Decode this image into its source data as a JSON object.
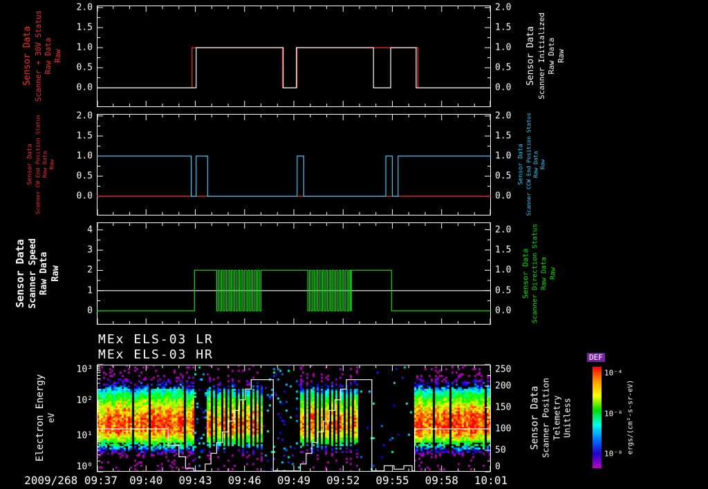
{
  "figure": {
    "bg": "#000000",
    "fg": "#ffffff",
    "x_axis": {
      "start_label": "2009/268 09:37",
      "range_minutes": [
        0,
        24
      ],
      "tick_minutes": [
        0,
        3,
        6,
        9,
        12,
        15,
        18,
        21,
        24
      ],
      "tick_labels": [
        "",
        "09:40",
        "09:43",
        "09:46",
        "09:49",
        "09:52",
        "09:55",
        "09:58",
        "10:01"
      ]
    }
  },
  "chart_data": [
    {
      "type": "line",
      "panel": "scanner-30v-and-initialized",
      "xlim": [
        0,
        24
      ],
      "ylim": [
        -0.48,
        2.05
      ],
      "yticks": {
        "values": [
          0,
          0.5,
          1,
          1.5,
          2
        ],
        "labels": [
          "0.0",
          "0.5",
          "1.0",
          "1.5",
          "2.0"
        ]
      },
      "left_label_lines": [
        "Sensor Data",
        "Scanner + 30V Status",
        "Raw Data",
        "Raw"
      ],
      "left_label_color": "#ff2a2a",
      "right_label_lines": [
        "Sensor Data",
        "Scanner Initialized",
        "Raw Data",
        "Raw"
      ],
      "right_label_color": "#ffffff",
      "series": [
        {
          "name": "Scanner + 30V Status Raw",
          "color": "#ff2a2a",
          "points": [
            [
              0,
              0
            ],
            [
              5.8,
              0
            ],
            [
              5.8,
              1
            ],
            [
              11.3,
              1
            ],
            [
              11.3,
              0
            ],
            [
              12.2,
              0
            ],
            [
              12.2,
              1
            ],
            [
              19.55,
              1
            ],
            [
              19.55,
              0
            ],
            [
              24,
              0
            ]
          ]
        },
        {
          "name": "Scanner Initialized Raw",
          "color": "#ffffff",
          "points": [
            [
              0,
              0
            ],
            [
              6.05,
              0
            ],
            [
              6.05,
              1
            ],
            [
              11.35,
              1
            ],
            [
              11.35,
              0
            ],
            [
              12.15,
              0
            ],
            [
              12.15,
              1
            ],
            [
              16.85,
              1
            ],
            [
              16.85,
              0
            ],
            [
              17.9,
              0
            ],
            [
              17.9,
              1
            ],
            [
              19.45,
              1
            ],
            [
              19.45,
              0
            ],
            [
              24,
              0
            ]
          ]
        }
      ]
    },
    {
      "type": "line",
      "panel": "scanner-end-position-status",
      "xlim": [
        0,
        24
      ],
      "ylim": [
        -0.48,
        2.05
      ],
      "yticks": {
        "values": [
          0,
          0.5,
          1,
          1.5,
          2
        ],
        "labels": [
          "0.0",
          "0.5",
          "1.0",
          "1.5",
          "2.0"
        ]
      },
      "left_label_lines": [
        "Sensor Data",
        "Scanner CW End Position Status",
        "Raw Data",
        "Raw"
      ],
      "left_label_color": "#ff2a2a",
      "right_label_lines": [
        "Sensor Data",
        "Scanner CCW End Position Status",
        "Raw Data",
        "Raw"
      ],
      "right_label_color": "#35ccff",
      "series": [
        {
          "name": "Scanner CW End Position Status Raw",
          "color": "#ff2a2a",
          "points": [
            [
              0,
              0
            ],
            [
              24,
              0
            ]
          ]
        },
        {
          "name": "Scanner CCW End Position Status Raw",
          "color": "#35ccff",
          "points": [
            [
              0,
              1
            ],
            [
              5.75,
              1
            ],
            [
              5.75,
              0
            ],
            [
              6.05,
              0
            ],
            [
              6.05,
              1
            ],
            [
              6.75,
              1
            ],
            [
              6.75,
              0
            ],
            [
              12.2,
              0
            ],
            [
              12.2,
              1
            ],
            [
              12.6,
              1
            ],
            [
              12.6,
              0
            ],
            [
              17.6,
              0
            ],
            [
              17.6,
              1
            ],
            [
              18.0,
              1
            ],
            [
              18.0,
              0
            ],
            [
              18.35,
              0
            ],
            [
              18.35,
              1
            ],
            [
              24,
              1
            ]
          ]
        }
      ]
    },
    {
      "type": "line",
      "panel": "scanner-speed-and-direction",
      "xlim": [
        0,
        24
      ],
      "ylim": [
        -0.68,
        4.37
      ],
      "yticks": {
        "values": [
          0,
          1,
          2,
          3,
          4
        ],
        "labels": [
          "0",
          "1",
          "2",
          "3",
          "4"
        ]
      },
      "right_ylim": [
        -0.34,
        2.18
      ],
      "right_yticks": {
        "values": [
          0,
          0.5,
          1,
          1.5,
          2
        ],
        "labels": [
          "0.0",
          "0.5",
          "1.0",
          "1.5",
          "2.0"
        ]
      },
      "left_label_lines": [
        "Sensor Data",
        "Scanner Speed",
        "Raw Data",
        "Raw"
      ],
      "left_label_color": "#ffffff",
      "right_label_lines": [
        "Sensor Data",
        "Scanner Direction Status",
        "Raw Data",
        "Raw"
      ],
      "right_label_color": "#00e600",
      "series": [
        {
          "name": "Scanner Speed Raw",
          "color": "#ffffff",
          "axis": "left",
          "points": [
            [
              0,
              1
            ],
            [
              24,
              1
            ]
          ]
        },
        {
          "name": "Scanner Direction Status Raw",
          "color": "#00e600",
          "axis": "right",
          "segments": [
            {
              "t": [
                0,
                5.95
              ],
              "v": 0
            },
            {
              "t": [
                5.95,
                7.2
              ],
              "v": 1
            },
            {
              "t": [
                7.2,
                10.0
              ],
              "square": {
                "period": 0.2,
                "high": 1,
                "low": 0
              }
            },
            {
              "t": [
                10.0,
                12.75
              ],
              "v": 1
            },
            {
              "t": [
                12.75,
                15.5
              ],
              "square": {
                "period": 0.2,
                "high": 1,
                "low": 0
              }
            },
            {
              "t": [
                15.5,
                17.95
              ],
              "v": 1
            },
            {
              "t": [
                17.95,
                24
              ],
              "v": 0
            }
          ]
        }
      ]
    },
    {
      "type": "heatmap",
      "panel": "els-energy-spectrogram",
      "titles": [
        "MEx ELS-03 LR",
        "MEx ELS-03 HR"
      ],
      "left_label_lines": [
        "Electron Energy",
        "eV"
      ],
      "y_scale": "log",
      "ylim_ev": [
        1,
        1000
      ],
      "yticks": {
        "values": [
          0,
          1,
          2,
          3
        ],
        "labels": [
          "10⁰",
          "10¹",
          "10²",
          "10³"
        ]
      },
      "right_axis": {
        "label_lines": [
          "Sensor Data",
          "Scanner Position",
          "Telemetry",
          "Unitless"
        ],
        "ylim": [
          0,
          250
        ],
        "yticks": {
          "values": [
            0,
            50,
            100,
            150,
            200,
            250
          ],
          "labels": [
            "0",
            "50",
            "100",
            "150",
            "200",
            "250"
          ]
        }
      },
      "colorbar": {
        "title": "DEF",
        "unit_label": "ergs/(cm²-s-sr-eV)",
        "log10_range": [
          -8.7,
          -3.7
        ],
        "ticks": [
          {
            "exp": -4,
            "label": "10⁻⁴"
          },
          {
            "exp": -6,
            "label": "10⁻⁶"
          },
          {
            "exp": -8,
            "label": "10⁻⁸"
          }
        ],
        "gradient_top_to_bottom": [
          "#ff0000",
          "#ff9900",
          "#ffff00",
          "#00dd00",
          "#00ffee",
          "#0077ff",
          "#2200cc",
          "#bb00bb"
        ]
      },
      "band_model": {
        "peak_energy_ev": 20,
        "sigma_dex_below": 0.26,
        "sigma_dex_above": 0.42
      },
      "data_blocks": [
        {
          "t": [
            0,
            5.9
          ],
          "style": "dense",
          "peak_log10_flux": -4.0
        },
        {
          "t": [
            6.7,
            10.15
          ],
          "style": "striped",
          "peak_log10_flux": -4.3
        },
        {
          "t": [
            12.4,
            16.05
          ],
          "style": "striped",
          "peak_log10_flux": -4.3
        },
        {
          "t": [
            19.35,
            24
          ],
          "style": "dense",
          "peak_log10_flux": -4.0
        }
      ],
      "sparse_regions": [
        {
          "t": [
            5.9,
            6.7
          ],
          "dot_density": 0.1
        },
        {
          "t": [
            10.15,
            12.4
          ],
          "dot_density": 0.06
        },
        {
          "t": [
            16.05,
            19.35
          ],
          "dot_density": 0.012
        }
      ],
      "overlay_series": {
        "name": "Scanner Position Telemetry",
        "color": "#ffffff",
        "points": [
          [
            0,
            100
          ],
          [
            4.35,
            100
          ],
          [
            4.35,
            62
          ],
          [
            5.0,
            62
          ],
          [
            5.0,
            35
          ],
          [
            5.4,
            35
          ],
          [
            5.4,
            8
          ],
          [
            5.9,
            8
          ],
          [
            5.9,
            2
          ],
          [
            6.6,
            2
          ],
          [
            6.6,
            18
          ],
          [
            6.95,
            18
          ],
          [
            6.95,
            43
          ],
          [
            7.3,
            43
          ],
          [
            7.3,
            68
          ],
          [
            7.65,
            68
          ],
          [
            7.65,
            93
          ],
          [
            8.0,
            93
          ],
          [
            8.0,
            118
          ],
          [
            8.35,
            118
          ],
          [
            8.35,
            143
          ],
          [
            8.7,
            143
          ],
          [
            8.7,
            168
          ],
          [
            9.05,
            168
          ],
          [
            9.05,
            193
          ],
          [
            9.4,
            193
          ],
          [
            9.4,
            215
          ],
          [
            10.75,
            215
          ],
          [
            10.75,
            2
          ],
          [
            12.4,
            2
          ],
          [
            12.4,
            18
          ],
          [
            12.75,
            18
          ],
          [
            12.75,
            43
          ],
          [
            13.1,
            43
          ],
          [
            13.1,
            68
          ],
          [
            13.45,
            68
          ],
          [
            13.45,
            93
          ],
          [
            13.8,
            93
          ],
          [
            13.8,
            118
          ],
          [
            14.15,
            118
          ],
          [
            14.15,
            143
          ],
          [
            14.5,
            143
          ],
          [
            14.5,
            168
          ],
          [
            14.85,
            168
          ],
          [
            14.85,
            193
          ],
          [
            15.2,
            193
          ],
          [
            15.2,
            215
          ],
          [
            16.75,
            215
          ],
          [
            16.75,
            2
          ],
          [
            17.5,
            2
          ],
          [
            17.5,
            14
          ],
          [
            18.1,
            14
          ],
          [
            18.1,
            6
          ],
          [
            18.7,
            6
          ],
          [
            18.7,
            14
          ],
          [
            19.2,
            14
          ],
          [
            19.2,
            2
          ],
          [
            19.35,
            2
          ],
          [
            19.35,
            100
          ],
          [
            24,
            100
          ]
        ]
      }
    }
  ]
}
